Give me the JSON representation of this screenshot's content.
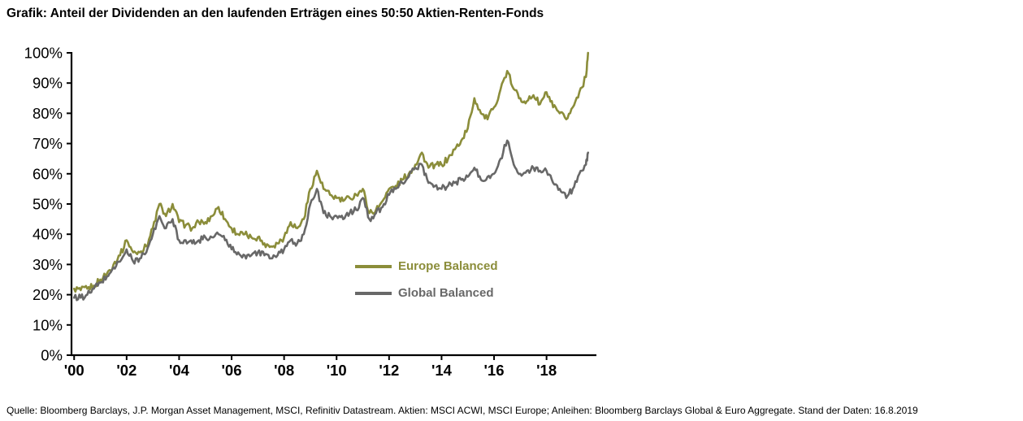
{
  "page": {
    "title": "Grafik: Anteil der Dividenden an den laufenden Erträgen eines 50:50 Aktien-Renten-Fonds",
    "source": "Quelle: Bloomberg Barclays, J.P. Morgan Asset Management, MSCI, Refinitiv Datastream. Aktien: MSCI ACWI, MSCI Europe; Anleihen: Bloomberg Barclays Global & Euro Aggregate. Stand der Daten: 16.8.2019"
  },
  "chart_data": {
    "type": "line",
    "title": "Anteil der Dividenden an den laufenden Erträgen eines 50:50 Aktien-Renten-Fonds",
    "xlabel": "",
    "ylabel": "",
    "xlim": [
      1999.9,
      2019.9
    ],
    "ylim": [
      0,
      100
    ],
    "grid": false,
    "legend_position": "inside-left-middle",
    "axis_color": "#000000",
    "x_ticks": [
      {
        "value": 2000,
        "label": "'00"
      },
      {
        "value": 2002,
        "label": "'02"
      },
      {
        "value": 2004,
        "label": "'04"
      },
      {
        "value": 2006,
        "label": "'06"
      },
      {
        "value": 2008,
        "label": "'08"
      },
      {
        "value": 2010,
        "label": "'10"
      },
      {
        "value": 2012,
        "label": "'12"
      },
      {
        "value": 2014,
        "label": "'14"
      },
      {
        "value": 2016,
        "label": "'16"
      },
      {
        "value": 2018,
        "label": "'18"
      }
    ],
    "y_ticks": [
      {
        "value": 0,
        "label": "0%"
      },
      {
        "value": 10,
        "label": "10%"
      },
      {
        "value": 20,
        "label": "20%"
      },
      {
        "value": 30,
        "label": "30%"
      },
      {
        "value": 40,
        "label": "40%"
      },
      {
        "value": 50,
        "label": "50%"
      },
      {
        "value": 60,
        "label": "60%"
      },
      {
        "value": 70,
        "label": "70%"
      },
      {
        "value": 80,
        "label": "80%"
      },
      {
        "value": 90,
        "label": "90%"
      },
      {
        "value": 100,
        "label": "100%"
      }
    ],
    "x": [
      2000,
      2000.25,
      2000.5,
      2000.75,
      2001,
      2001.25,
      2001.5,
      2001.75,
      2002,
      2002.25,
      2002.5,
      2002.75,
      2003,
      2003.25,
      2003.5,
      2003.75,
      2004,
      2004.25,
      2004.5,
      2004.75,
      2005,
      2005.25,
      2005.5,
      2005.75,
      2006,
      2006.25,
      2006.5,
      2006.75,
      2007,
      2007.25,
      2007.5,
      2007.75,
      2008,
      2008.25,
      2008.5,
      2008.75,
      2009,
      2009.25,
      2009.5,
      2009.75,
      2010,
      2010.25,
      2010.5,
      2010.75,
      2011,
      2011.25,
      2011.5,
      2011.75,
      2012,
      2012.25,
      2012.5,
      2012.75,
      2013,
      2013.25,
      2013.5,
      2013.75,
      2014,
      2014.25,
      2014.5,
      2014.75,
      2015,
      2015.25,
      2015.5,
      2015.75,
      2016,
      2016.25,
      2016.5,
      2016.75,
      2017,
      2017.25,
      2017.5,
      2017.75,
      2018,
      2018.25,
      2018.5,
      2018.75,
      2019,
      2019.25,
      2019.5,
      2019.58
    ],
    "series": [
      {
        "name": "Europe Balanced",
        "color": "#8b8d3a",
        "values": [
          22,
          21.5,
          22,
          23,
          25,
          27,
          30,
          33,
          38,
          34,
          34,
          36,
          42,
          50,
          46,
          50,
          44,
          43,
          42,
          44,
          44,
          46,
          49,
          45,
          42,
          40,
          40,
          39,
          39,
          37,
          36,
          37,
          39,
          44,
          42,
          45,
          55,
          61,
          55,
          53,
          52,
          51,
          52,
          53,
          55,
          47,
          48,
          51,
          55,
          56,
          58,
          60,
          63,
          67,
          62,
          63,
          63,
          65,
          68,
          71,
          75,
          85,
          80,
          78,
          82,
          88,
          94,
          88,
          85,
          84,
          86,
          83,
          87,
          82,
          80,
          78,
          82,
          87,
          92,
          100
        ]
      },
      {
        "name": "Global Balanced",
        "color": "#686868",
        "values": [
          19,
          19,
          20,
          22,
          24,
          26,
          29,
          31,
          35,
          31,
          32,
          34,
          40,
          46,
          42,
          45,
          38,
          38,
          37,
          38,
          39,
          39,
          40,
          38,
          35,
          34,
          33,
          33,
          34,
          33,
          32,
          33,
          35,
          38,
          37,
          40,
          50,
          55,
          47,
          46,
          46,
          45,
          47,
          48,
          52,
          45,
          47,
          49,
          53,
          55,
          57,
          59,
          62,
          63,
          57,
          56,
          55,
          56,
          57,
          58,
          59,
          62,
          58,
          59,
          60,
          65,
          71,
          63,
          60,
          61,
          62,
          61,
          61,
          57,
          55,
          52,
          55,
          60,
          63,
          67
        ]
      }
    ]
  }
}
